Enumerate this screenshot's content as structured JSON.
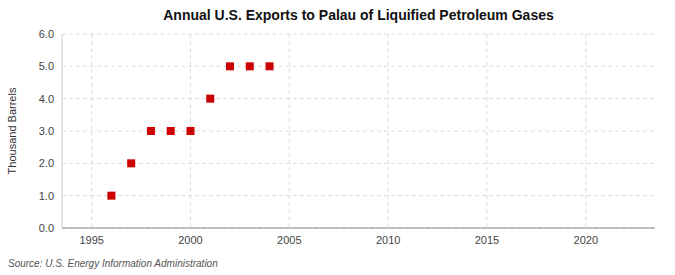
{
  "chart_data": {
    "type": "scatter",
    "title": "Annual U.S. Exports to Palau of Liquified Petroleum Gases",
    "y_label": "Thousand Barrels",
    "source": "Source: U.S. Energy Information Administration",
    "x": [
      1996,
      1997,
      1998,
      1999,
      2000,
      2001,
      2002,
      2003,
      2004
    ],
    "values": [
      1.0,
      2.0,
      3.0,
      3.0,
      3.0,
      4.0,
      5.0,
      5.0,
      5.0
    ],
    "xlim": [
      1993.5,
      2023.5
    ],
    "ylim": [
      0.0,
      6.0
    ],
    "xticks": [
      1995,
      2000,
      2005,
      2010,
      2015,
      2020
    ],
    "yticks": [
      {
        "value": 0.0,
        "label": "0.0"
      },
      {
        "value": 1.0,
        "label": "1.0"
      },
      {
        "value": 2.0,
        "label": "2.0"
      },
      {
        "value": 3.0,
        "label": "3.0"
      },
      {
        "value": 4.0,
        "label": "4.0"
      },
      {
        "value": 5.0,
        "label": "5.0"
      },
      {
        "value": 6.0,
        "label": "6.0"
      }
    ],
    "color": "#cc0000",
    "marker": "square",
    "grid": true
  }
}
